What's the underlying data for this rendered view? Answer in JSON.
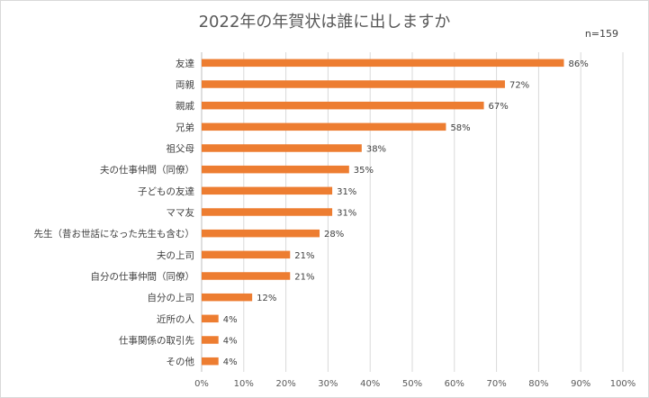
{
  "chart_data": {
    "type": "bar",
    "orientation": "horizontal",
    "title": "2022年の年賀状は誰に出しますか",
    "note": "n=159",
    "categories": [
      "友達",
      "両親",
      "親戚",
      "兄弟",
      "祖父母",
      "夫の仕事仲間（同僚）",
      "子どもの友達",
      "ママ友",
      "先生（昔お世話になった先生も含む）",
      "夫の上司",
      "自分の仕事仲間（同僚）",
      "自分の上司",
      "近所の人",
      "仕事関係の取引先",
      "その他"
    ],
    "values": [
      86,
      72,
      67,
      58,
      38,
      35,
      31,
      31,
      28,
      21,
      21,
      12,
      4,
      4,
      4
    ],
    "value_labels": [
      "86%",
      "72%",
      "67%",
      "58%",
      "38%",
      "35%",
      "31%",
      "31%",
      "28%",
      "21%",
      "21%",
      "12%",
      "4%",
      "4%",
      "4%"
    ],
    "xlim": [
      0,
      100
    ],
    "xticks": [
      "0%",
      "10%",
      "20%",
      "30%",
      "40%",
      "50%",
      "60%",
      "70%",
      "80%",
      "90%",
      "100%"
    ],
    "grid": true,
    "legend": "none",
    "colors": {
      "bar": "#ED7D31",
      "grid": "#D9D9D9",
      "axis": "#BFBFBF",
      "text": "#404040"
    }
  }
}
